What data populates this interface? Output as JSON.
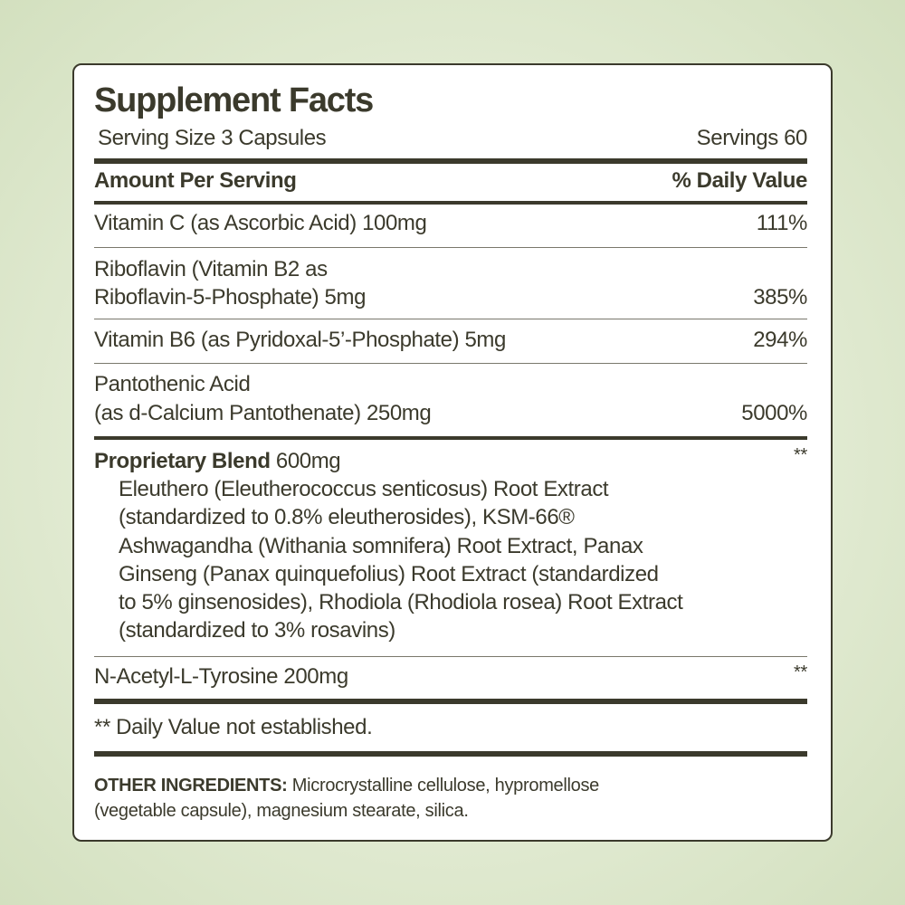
{
  "title": "Supplement Facts",
  "serving_size": "Serving Size 3 Capsules",
  "servings": "Servings 60",
  "header": {
    "amount": "Amount Per Serving",
    "dv": "% Daily Value"
  },
  "nutrients": [
    {
      "lines": [
        "Vitamin C (as Ascorbic Acid) 100mg"
      ],
      "dv": "111%"
    },
    {
      "lines": [
        "Riboflavin (Vitamin B2 as",
        "Riboflavin-5-Phosphate) 5mg"
      ],
      "dv": "385%"
    },
    {
      "lines": [
        "Vitamin B6 (as Pyridoxal-5’-Phosphate) 5mg"
      ],
      "dv": "294%"
    },
    {
      "lines": [
        "Pantothenic Acid",
        "(as d-Calcium Pantothenate) 250mg"
      ],
      "dv": "5000%"
    }
  ],
  "blend": {
    "name": "Proprietary Blend",
    "amount": "600mg",
    "dv": "**",
    "lines": [
      "Eleuthero (Eleutherococcus senticosus) Root Extract",
      "(standardized to 0.8% eleutherosides), KSM-66®",
      "Ashwagandha (Withania somnifera) Root Extract, Panax",
      "Ginseng (Panax quinquefolius) Root Extract (standardized",
      "to 5% ginsenosides), Rhodiola (Rhodiola rosea) Root Extract",
      "(standardized to 3% rosavins)"
    ]
  },
  "tyrosine": {
    "label": "N-Acetyl-L-Tyrosine 200mg",
    "dv": "**"
  },
  "footnote": "** Daily Value not established.",
  "other": {
    "label": "OTHER INGREDIENTS:",
    "line1": "Microcrystalline cellulose, hypromellose",
    "line2": "(vegetable capsule), magnesium stearate, silica."
  }
}
